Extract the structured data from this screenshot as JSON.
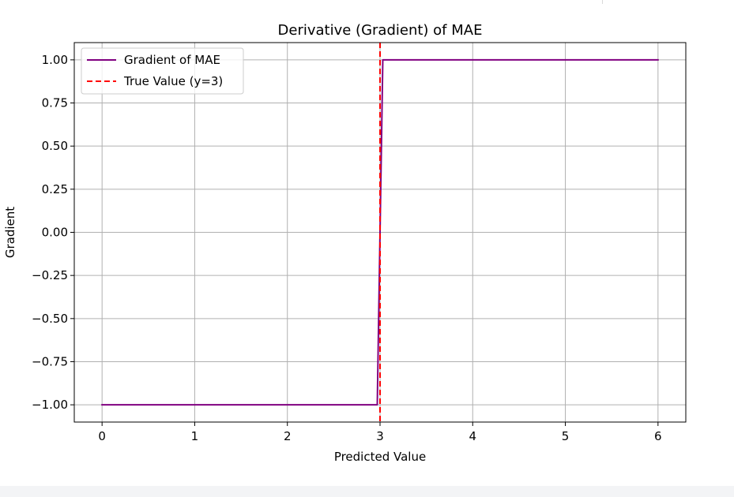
{
  "chart_data": {
    "type": "line",
    "title": "Derivative (Gradient) of MAE",
    "xlabel": "Predicted Value",
    "ylabel": "Gradient",
    "xlim": [
      -0.3,
      6.3
    ],
    "ylim": [
      -1.1,
      1.1
    ],
    "xticks": [
      0,
      1,
      2,
      3,
      4,
      5,
      6
    ],
    "xtick_labels": [
      "0",
      "1",
      "2",
      "3",
      "4",
      "5",
      "6"
    ],
    "yticks": [
      1.0,
      0.75,
      0.5,
      0.25,
      0.0,
      -0.25,
      -0.5,
      -0.75,
      -1.0
    ],
    "ytick_labels": [
      "1.00",
      "0.75",
      "0.50",
      "0.25",
      "0.00",
      "−0.25",
      "−0.50",
      "−0.75",
      "−1.00"
    ],
    "grid": true,
    "legend_position": "upper-left",
    "series": [
      {
        "name": "Gradient of MAE",
        "style": "solid",
        "color": "#800080",
        "x": [
          0,
          2.97,
          3.03,
          6
        ],
        "y": [
          -1,
          -1,
          1,
          1
        ]
      }
    ],
    "vlines": [
      {
        "name": "True Value (y=3)",
        "style": "dashed",
        "color": "#ff0000",
        "x": 3
      }
    ]
  }
}
